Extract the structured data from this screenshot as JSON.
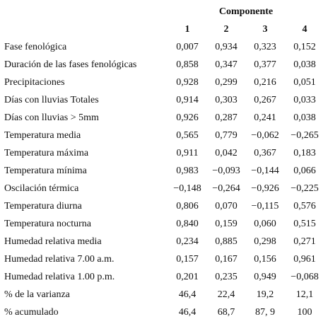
{
  "header": {
    "title": "Componente",
    "columns": [
      "1",
      "2",
      "3",
      "4"
    ]
  },
  "table": {
    "rows": [
      [
        "Fase fenológica",
        "0,007",
        "0,934",
        "0,323",
        "0,152"
      ],
      [
        "Duración de las fases fenológicas",
        "0,858",
        "0,347",
        "0,377",
        "0,038"
      ],
      [
        "Precipitaciones",
        "0,928",
        "0,299",
        "0,216",
        "0,051"
      ],
      [
        "Días con lluvias Totales",
        "0,914",
        "0,303",
        "0,267",
        "0,033"
      ],
      [
        "Días con lluvias > 5mm",
        "0,926",
        "0,287",
        "0,241",
        "0,038"
      ],
      [
        "Temperatura media",
        "0,565",
        "0,779",
        "−0,062",
        "−0,265"
      ],
      [
        "Temperatura máxima",
        "0,911",
        "0,042",
        "0,367",
        "0,183"
      ],
      [
        "Temperatura mínima",
        "0,983",
        "−0,093",
        "−0,144",
        "0,066"
      ],
      [
        "Oscilación térmica",
        "−0,148",
        "−0,264",
        "−0,926",
        "−0,225"
      ],
      [
        "Temperatura diurna",
        "0,806",
        "0,070",
        "−0,115",
        "0,576"
      ],
      [
        "Temperatura nocturna",
        "0,840",
        "0,159",
        "0,060",
        "0,515"
      ],
      [
        "Humedad relativa media",
        "0,234",
        "0,885",
        "0,298",
        "0,271"
      ],
      [
        "Humedad relativa 7.00 a.m.",
        "0,157",
        "0,167",
        "0,156",
        "0,961"
      ],
      [
        "Humedad relativa 1.00 p.m.",
        "0,201",
        "0,235",
        "0,949",
        "−0,068"
      ],
      [
        "% de la varianza",
        "46,4",
        "22,4",
        "19,2",
        "12,1"
      ],
      [
        "% acumulado",
        "46,4",
        "68,7",
        "87, 9",
        "100"
      ]
    ]
  }
}
